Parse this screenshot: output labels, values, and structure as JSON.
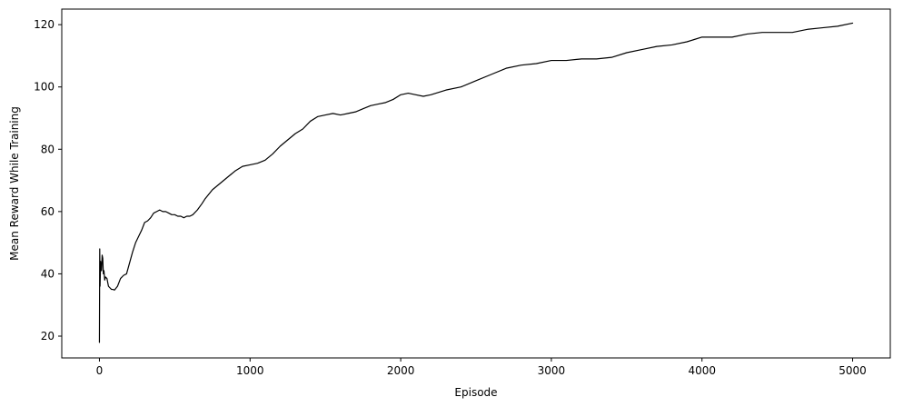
{
  "chart_data": {
    "type": "line",
    "title": "",
    "xlabel": "Episode",
    "ylabel": "Mean Reward While Training",
    "xlim": [
      -250,
      5250
    ],
    "ylim": [
      13,
      125
    ],
    "x_ticks": [
      0,
      1000,
      2000,
      3000,
      4000,
      5000
    ],
    "x_tick_labels": [
      "0",
      "1000",
      "2000",
      "3000",
      "4000",
      "5000"
    ],
    "y_ticks": [
      20,
      40,
      60,
      80,
      100,
      120
    ],
    "y_tick_labels": [
      "20",
      "40",
      "60",
      "80",
      "100",
      "120"
    ],
    "grid": false,
    "legend": false,
    "line_color": "#000000",
    "series": [
      {
        "x": [
          0,
          2,
          4,
          6,
          8,
          10,
          14,
          18,
          22,
          26,
          30,
          35,
          40,
          50,
          60,
          70,
          80,
          90,
          100,
          120,
          140,
          160,
          180,
          200,
          220,
          240,
          260,
          280,
          300,
          320,
          340,
          360,
          380,
          400,
          420,
          440,
          460,
          480,
          500,
          520,
          540,
          560,
          580,
          600,
          620,
          650,
          680,
          700,
          750,
          800,
          850,
          900,
          950,
          1000,
          1050,
          1100,
          1150,
          1200,
          1250,
          1300,
          1350,
          1400,
          1450,
          1500,
          1550,
          1600,
          1650,
          1700,
          1750,
          1800,
          1850,
          1900,
          1950,
          2000,
          2050,
          2100,
          2150,
          2200,
          2300,
          2400,
          2500,
          2600,
          2700,
          2800,
          2900,
          3000,
          3100,
          3200,
          3300,
          3400,
          3500,
          3600,
          3700,
          3800,
          3900,
          4000,
          4100,
          4200,
          4300,
          4400,
          4500,
          4600,
          4700,
          4800,
          4900,
          5000
        ],
        "values": [
          18,
          48,
          36,
          40,
          44,
          42,
          41,
          46,
          45,
          40,
          41,
          38,
          39,
          38.5,
          36,
          35.5,
          35,
          35,
          34.8,
          36,
          38.5,
          39.5,
          40,
          43.5,
          47,
          50,
          52,
          54,
          56.5,
          57,
          58,
          59.5,
          60,
          60.5,
          60,
          60,
          59.5,
          59,
          59,
          58.5,
          58.5,
          58,
          58.5,
          58.5,
          59,
          60.5,
          62.5,
          64,
          67,
          69,
          71,
          73,
          74.5,
          75,
          75.5,
          76.5,
          78.5,
          81,
          83,
          85,
          86.5,
          89,
          90.5,
          91,
          91.5,
          91,
          91.5,
          92,
          93,
          94,
          94.5,
          95,
          96,
          97.5,
          98,
          97.5,
          97,
          97.5,
          99,
          100,
          102,
          104,
          106,
          107,
          107.5,
          108.5,
          108.5,
          109,
          109,
          109.5,
          111,
          112,
          113,
          113.5,
          114.5,
          116,
          116,
          116,
          117,
          117.5,
          117.5,
          117.5,
          118.5,
          119,
          119.5,
          120.5
        ]
      }
    ]
  }
}
